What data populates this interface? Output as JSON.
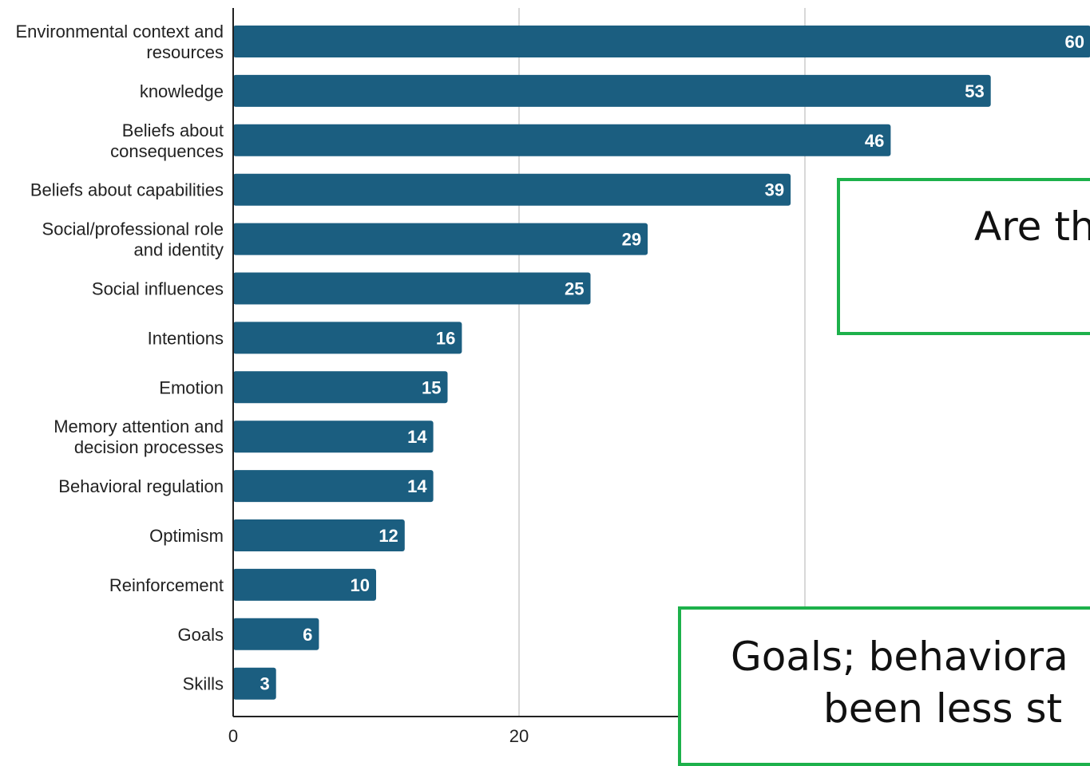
{
  "chart_data": {
    "type": "bar",
    "orientation": "horizontal",
    "categories": [
      [
        "Environmental context and",
        "resources"
      ],
      [
        "knowledge"
      ],
      [
        "Beliefs about",
        "consequences"
      ],
      [
        "Beliefs about capabilities"
      ],
      [
        "Social/professional role",
        "and identity"
      ],
      [
        "Social influences"
      ],
      [
        "Intentions"
      ],
      [
        "Emotion"
      ],
      [
        "Memory attention and",
        "decision processes"
      ],
      [
        "Behavioral regulation"
      ],
      [
        "Optimism"
      ],
      [
        "Reinforcement"
      ],
      [
        "Goals"
      ],
      [
        "Skills"
      ]
    ],
    "values": [
      60,
      53,
      46,
      39,
      29,
      25,
      16,
      15,
      14,
      14,
      12,
      10,
      6,
      3
    ],
    "x_ticks": [
      "0",
      "20"
    ],
    "xlim": [
      0,
      60
    ],
    "grid": true,
    "bar_color": "#1b5e80"
  },
  "callouts": {
    "top_text": "Are th",
    "bottom_line1": "Goals; behaviora",
    "bottom_line2": "been less st"
  }
}
